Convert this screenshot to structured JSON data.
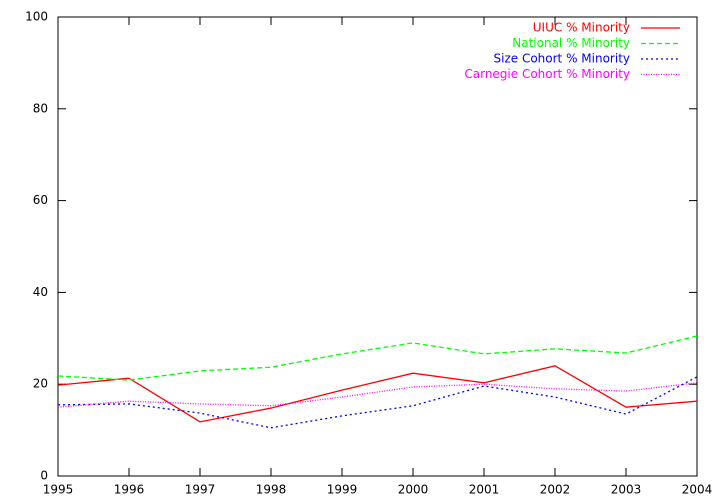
{
  "chart_data": {
    "type": "line",
    "x": [
      1995,
      1996,
      1997,
      1998,
      1999,
      2000,
      2001,
      2002,
      2003,
      2004
    ],
    "series": [
      {
        "name": "UIUC % Minority",
        "color": "#ff0000",
        "values": [
          19.8,
          21.3,
          11.8,
          14.8,
          18.7,
          22.4,
          20.3,
          24.0,
          15.0,
          16.3
        ]
      },
      {
        "name": "National % Minority",
        "color": "#00ff00",
        "values": [
          21.8,
          20.9,
          22.9,
          23.7,
          26.6,
          29.0,
          26.6,
          27.7,
          26.8,
          30.5
        ]
      },
      {
        "name": "Size Cohort % Minority",
        "color": "#0000ff",
        "values": [
          15.5,
          15.7,
          13.7,
          10.5,
          13.1,
          15.3,
          19.6,
          17.2,
          13.5,
          21.6
        ]
      },
      {
        "name": "Carnegie Cohort % Minority",
        "color": "#ff00ff",
        "values": [
          15.0,
          16.3,
          15.7,
          15.3,
          17.2,
          19.4,
          20.0,
          19.0,
          18.5,
          20.3
        ]
      }
    ],
    "xlim": [
      1995,
      2004
    ],
    "xticks": [
      1995,
      1996,
      1997,
      1998,
      1999,
      2000,
      2001,
      2002,
      2003,
      2004
    ],
    "ylim": [
      0,
      100
    ],
    "yticks": [
      0,
      20,
      40,
      60,
      80,
      100
    ],
    "grid": false,
    "legend": "top-right"
  }
}
